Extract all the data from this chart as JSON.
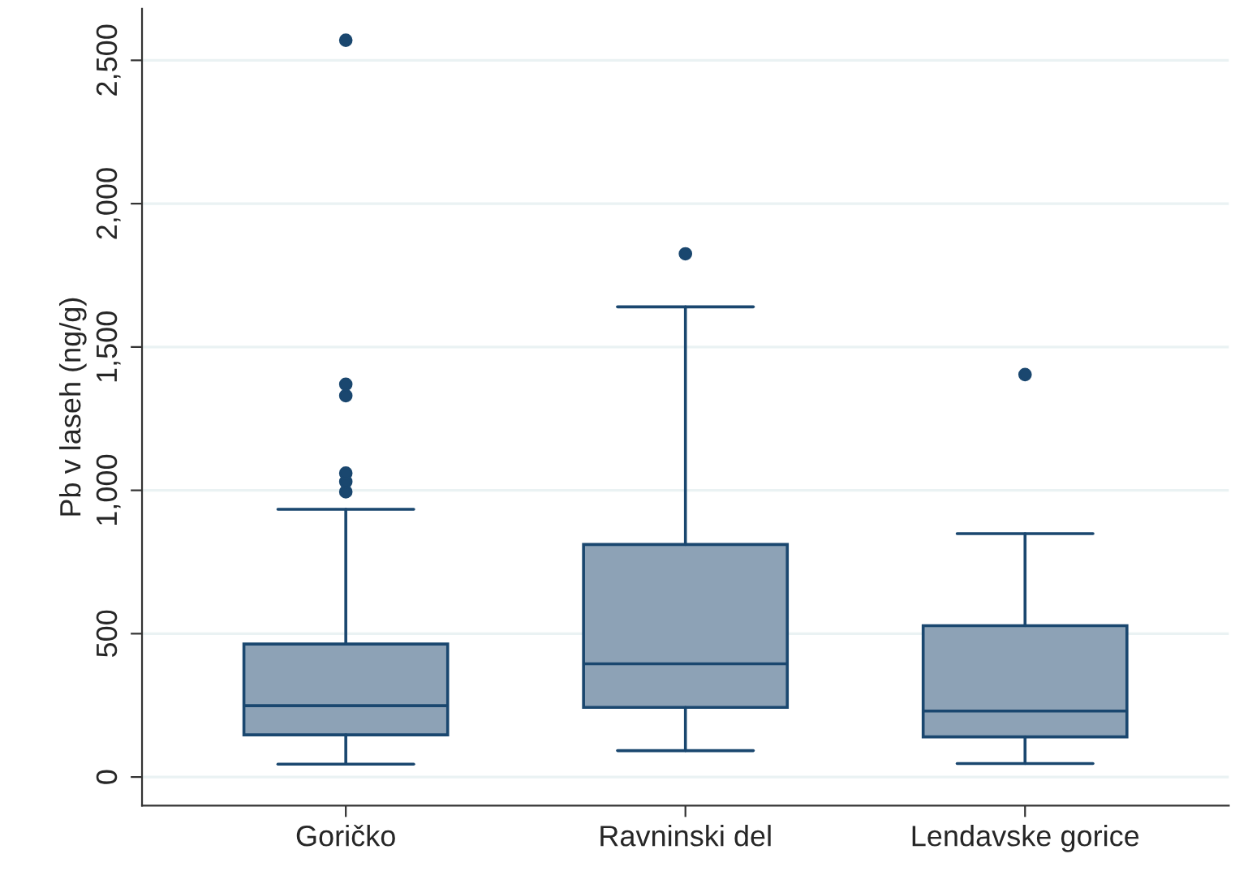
{
  "chart_data": {
    "type": "box",
    "ylabel": "Pb v laseh (ng/g)",
    "categories": [
      "Goričko",
      "Ravninski del",
      "Lendavske gorice"
    ],
    "series": [
      {
        "color": "#8da2b6",
        "boxes": [
          {
            "low": 45,
            "q1": 147,
            "median": 249,
            "q3": 464,
            "high": 934,
            "outliers": [
              995,
              1030,
              1060,
              1330,
              1370,
              2570
            ]
          },
          {
            "low": 92,
            "q1": 243,
            "median": 395,
            "q3": 811,
            "high": 1640,
            "outliers": [
              1825
            ]
          },
          {
            "low": 47,
            "q1": 140,
            "median": 230,
            "q3": 528,
            "high": 849,
            "outliers": [
              1404
            ]
          }
        ]
      }
    ],
    "ylim": [
      -100,
      2680
    ],
    "yticks": [
      {
        "value": 0,
        "label": "0"
      },
      {
        "value": 500,
        "label": "500"
      },
      {
        "value": 1000,
        "label": "1,000"
      },
      {
        "value": 1500,
        "label": "1,500"
      },
      {
        "value": 2000,
        "label": "2,000"
      },
      {
        "value": 2500,
        "label": "2,500"
      }
    ],
    "grid": "y"
  }
}
